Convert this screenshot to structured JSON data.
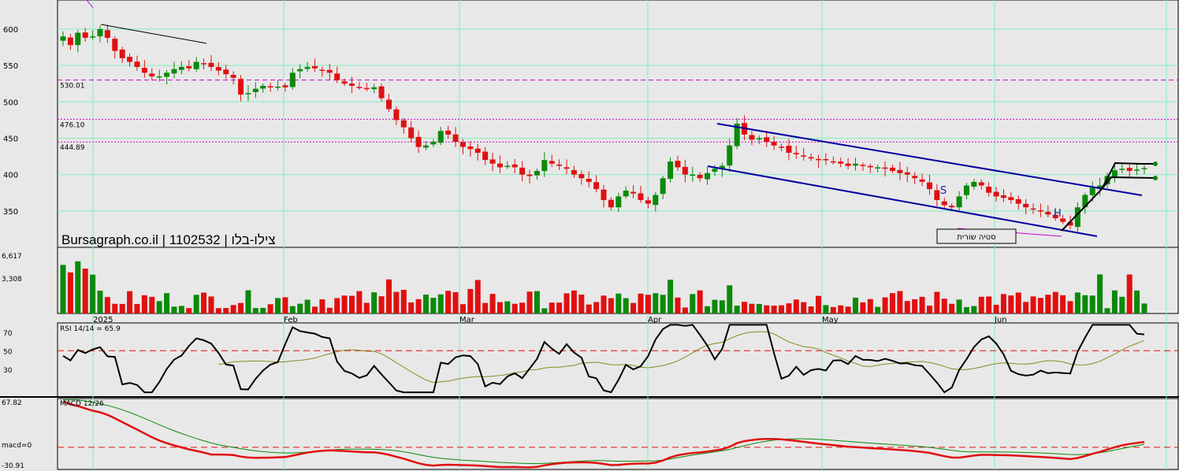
{
  "brand": "Bursagraph.co.il | 1102532 | צילו-בלו",
  "colors": {
    "up": "#0a8a0a",
    "down": "#e01010",
    "grid": "#7ff0c0",
    "bg": "#e8e8e8",
    "pink": "#cc00cc",
    "channel": "#0000a0",
    "ma": "#8a8a20"
  },
  "chart_data": [
    {
      "type": "candlestick",
      "title": "",
      "ylim": [
        300,
        640
      ],
      "y_ticks": [
        "600",
        "550",
        "500",
        "450",
        "400",
        "350"
      ],
      "x_ticks": [
        "2025",
        "Feb",
        "Mar",
        "Apr",
        "May",
        "Jun"
      ],
      "levels": [
        {
          "label": "530.01",
          "value": 530.01
        },
        {
          "label": "476.10",
          "value": 476.1
        },
        {
          "label": "444.89",
          "value": 444.89
        }
      ],
      "annotations": [
        {
          "text": "סטיה שורית"
        },
        {
          "text": "S"
        },
        {
          "text": "H"
        }
      ],
      "ohlc_close": [
        590,
        578,
        595,
        588,
        590,
        600,
        588,
        570,
        560,
        555,
        548,
        540,
        535,
        535,
        540,
        545,
        548,
        546,
        555,
        553,
        548,
        543,
        538,
        533,
        510,
        512,
        518,
        522,
        520,
        521,
        520,
        540,
        545,
        548,
        546,
        543,
        540,
        530,
        525,
        522,
        520,
        518,
        520,
        505,
        490,
        475,
        465,
        450,
        438,
        440,
        445,
        460,
        455,
        445,
        438,
        435,
        430,
        420,
        415,
        410,
        412,
        410,
        400,
        398,
        405,
        420,
        415,
        412,
        408,
        400,
        395,
        390,
        380,
        365,
        355,
        370,
        378,
        374,
        365,
        360,
        372,
        395,
        418,
        410,
        400,
        400,
        395,
        402,
        408,
        412,
        440,
        470,
        455,
        448,
        450,
        445,
        440,
        438,
        430,
        428,
        425,
        422,
        420,
        420,
        418,
        415,
        412,
        415,
        412,
        410,
        410,
        408,
        405,
        402,
        400,
        395,
        390,
        380,
        365,
        358,
        355,
        370,
        385,
        390,
        385,
        375,
        370,
        368,
        365,
        360,
        355,
        352,
        350,
        345,
        340,
        335,
        330,
        355,
        372,
        382,
        385,
        398,
        406,
        408,
        405,
        407,
        409
      ]
    },
    {
      "type": "bar",
      "title": "",
      "ylabel": "",
      "y_ticks": [
        "6,617",
        "3,308"
      ],
      "ylim": [
        0,
        6617
      ]
    },
    {
      "type": "line",
      "title": "RSI 14/14 = 65.9",
      "y_ticks": [
        "70",
        "50",
        "30"
      ],
      "ylim": [
        0,
        80
      ]
    },
    {
      "type": "line",
      "title": "MACD 12/26",
      "y_ticks": [
        "67.82",
        "macd=0",
        "-30.91"
      ],
      "ylim": [
        -30.91,
        67.82
      ]
    }
  ]
}
